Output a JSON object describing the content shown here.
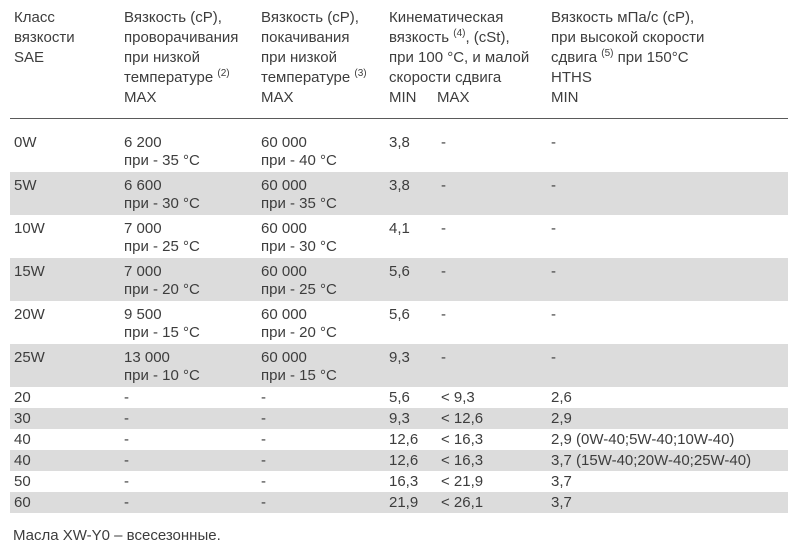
{
  "colors": {
    "text": "#3d3d3d",
    "shaded_row": "#dcdcdc",
    "header_rule": "#5a5a5a"
  },
  "table": {
    "columns": [
      {
        "id": "sae",
        "lines": [
          "Класс",
          "вязкости",
          "SAE"
        ]
      },
      {
        "id": "cranking",
        "lines": [
          "Вязкость (cP),",
          "проворачивания",
          "при низкой",
          "температуре (2)",
          "MAX"
        ]
      },
      {
        "id": "pumping",
        "lines": [
          "Вязкость (cP),",
          "покачивания",
          "при низкой",
          "температуре (3)",
          "MAX"
        ]
      },
      {
        "id": "kinematic",
        "span": 2,
        "lines": [
          "Кинематическая",
          "вязкость (4), (cSt),",
          "при 100 °C, и малой",
          "скорости сдвига"
        ],
        "sub": [
          "MIN",
          "MAX"
        ]
      },
      {
        "id": "hths",
        "lines": [
          "Вязкость мПа/с (cP),",
          "при высокой скорости",
          "сдвига (5) при 150°C",
          "HTHS",
          "MIN"
        ]
      }
    ],
    "rows": [
      {
        "sae": "0W",
        "cranking": [
          "6 200",
          "при - 35 °C"
        ],
        "pumping": [
          "60 000",
          "при - 40 °C"
        ],
        "kin_min": "3,8",
        "kin_max": "-",
        "hths": "-",
        "shaded": false
      },
      {
        "sae": "5W",
        "cranking": [
          "6 600",
          "при - 30 °C"
        ],
        "pumping": [
          "60 000",
          "при - 35 °C"
        ],
        "kin_min": "3,8",
        "kin_max": "-",
        "hths": "-",
        "shaded": true
      },
      {
        "sae": "10W",
        "cranking": [
          "7 000",
          "при - 25 °C"
        ],
        "pumping": [
          "60 000",
          "при - 30 °C"
        ],
        "kin_min": "4,1",
        "kin_max": "-",
        "hths": "-",
        "shaded": false
      },
      {
        "sae": "15W",
        "cranking": [
          "7 000",
          "при - 20 °C"
        ],
        "pumping": [
          "60 000",
          "при - 25 °C"
        ],
        "kin_min": "5,6",
        "kin_max": "-",
        "hths": "-",
        "shaded": true
      },
      {
        "sae": "20W",
        "cranking": [
          "9 500",
          "при - 15 °C"
        ],
        "pumping": [
          "60 000",
          "при - 20 °C"
        ],
        "kin_min": "5,6",
        "kin_max": "-",
        "hths": "-",
        "shaded": false
      },
      {
        "sae": "25W",
        "cranking": [
          "13 000",
          "при - 10 °C"
        ],
        "pumping": [
          "60 000",
          "при - 15 °C"
        ],
        "kin_min": "9,3",
        "kin_max": "-",
        "hths": "-",
        "shaded": true
      },
      {
        "sae": "20",
        "cranking": [
          "-"
        ],
        "pumping": [
          "-"
        ],
        "kin_min": "5,6",
        "kin_max": "< 9,3",
        "hths": "2,6",
        "shaded": false
      },
      {
        "sae": "30",
        "cranking": [
          "-"
        ],
        "pumping": [
          "-"
        ],
        "kin_min": "9,3",
        "kin_max": "< 12,6",
        "hths": "2,9",
        "shaded": true
      },
      {
        "sae": "40",
        "cranking": [
          "-"
        ],
        "pumping": [
          "-"
        ],
        "kin_min": "12,6",
        "kin_max": "< 16,3",
        "hths": "2,9 (0W-40;5W-40;10W-40)",
        "shaded": false
      },
      {
        "sae": "40",
        "cranking": [
          "-"
        ],
        "pumping": [
          "-"
        ],
        "kin_min": "12,6",
        "kin_max": "< 16,3",
        "hths": "3,7 (15W-40;20W-40;25W-40)",
        "shaded": true
      },
      {
        "sae": "50",
        "cranking": [
          "-"
        ],
        "pumping": [
          "-"
        ],
        "kin_min": "16,3",
        "kin_max": "< 21,9",
        "hths": "3,7",
        "shaded": false
      },
      {
        "sae": "60",
        "cranking": [
          "-"
        ],
        "pumping": [
          "-"
        ],
        "kin_min": "21,9",
        "kin_max": "< 26,1",
        "hths": "3,7",
        "shaded": true
      }
    ],
    "footnote": "Масла XW-Y0 – всесезонные."
  }
}
